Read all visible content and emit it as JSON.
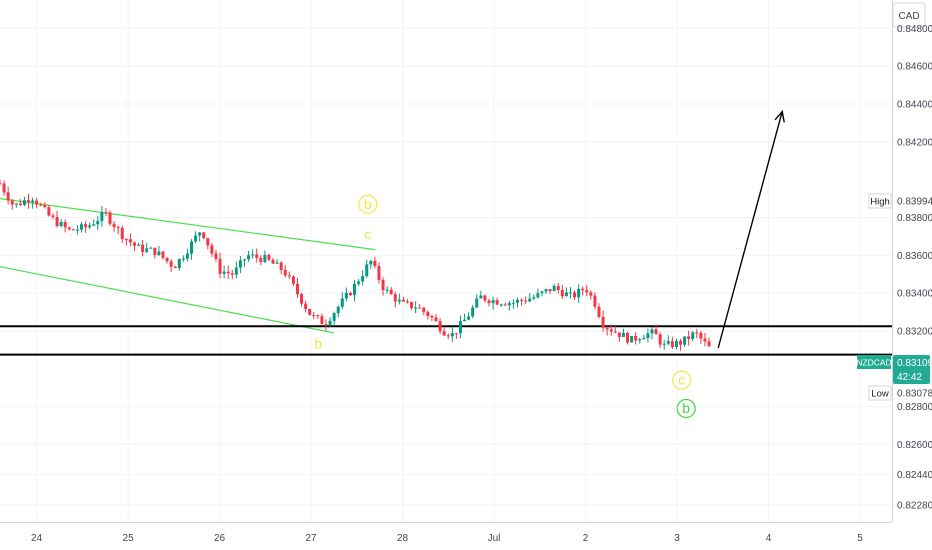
{
  "chart_data": {
    "type": "candlestick",
    "symbol": "NZDCAD",
    "currency": "CAD",
    "price_labels": {
      "last_price": "0.83109",
      "countdown": "42:42",
      "high_label": "High",
      "high_price": "0.83994",
      "low_label": "Low",
      "low_price": "0.83078"
    },
    "yaxis": {
      "ylim": [
        0.8219,
        0.8495
      ],
      "ticks": [
        "0.84800",
        "0.84600",
        "0.84400",
        "0.84200",
        "0.83800",
        "0.83600",
        "0.83400",
        "0.83200",
        "0.82800",
        "0.82600",
        "0.82440",
        "0.82280"
      ]
    },
    "xaxis": {
      "xlim": [
        -0.4,
        9.35
      ],
      "ticks": [
        {
          "label": "24",
          "x": 0
        },
        {
          "label": "25",
          "x": 1
        },
        {
          "label": "26",
          "x": 2
        },
        {
          "label": "27",
          "x": 3
        },
        {
          "label": "28",
          "x": 4
        },
        {
          "label": "Jul",
          "x": 5
        },
        {
          "label": "2",
          "x": 6
        },
        {
          "label": "3",
          "x": 7
        },
        {
          "label": "4",
          "x": 8
        },
        {
          "label": "5",
          "x": 9
        }
      ]
    },
    "price_path": [
      [
        -0.4,
        0.8398
      ],
      [
        -0.25,
        0.8386
      ],
      [
        -0.05,
        0.8391
      ],
      [
        0.15,
        0.838
      ],
      [
        0.35,
        0.8373
      ],
      [
        0.55,
        0.8375
      ],
      [
        0.75,
        0.8382
      ],
      [
        0.95,
        0.837
      ],
      [
        1.1,
        0.8364
      ],
      [
        1.3,
        0.8362
      ],
      [
        1.5,
        0.8354
      ],
      [
        1.62,
        0.8361
      ],
      [
        1.8,
        0.8374
      ],
      [
        2.0,
        0.8352
      ],
      [
        2.15,
        0.835
      ],
      [
        2.3,
        0.836
      ],
      [
        2.5,
        0.8358
      ],
      [
        2.7,
        0.8352
      ],
      [
        2.85,
        0.834
      ],
      [
        3.0,
        0.8328
      ],
      [
        3.15,
        0.8324
      ],
      [
        3.3,
        0.8333
      ],
      [
        3.45,
        0.8342
      ],
      [
        3.65,
        0.8357
      ],
      [
        3.8,
        0.8342
      ],
      [
        4.0,
        0.8334
      ],
      [
        4.15,
        0.8333
      ],
      [
        4.3,
        0.8328
      ],
      [
        4.45,
        0.832
      ],
      [
        4.55,
        0.8318
      ],
      [
        4.7,
        0.8327
      ],
      [
        4.85,
        0.8338
      ],
      [
        5.0,
        0.8336
      ],
      [
        5.2,
        0.8335
      ],
      [
        5.45,
        0.8338
      ],
      [
        5.65,
        0.8343
      ],
      [
        5.85,
        0.8338
      ],
      [
        6.0,
        0.8343
      ],
      [
        6.1,
        0.8335
      ],
      [
        6.2,
        0.8323
      ],
      [
        6.35,
        0.8319
      ],
      [
        6.5,
        0.8315
      ],
      [
        6.62,
        0.8318
      ],
      [
        6.75,
        0.8319
      ],
      [
        6.85,
        0.8312
      ],
      [
        7.05,
        0.8314
      ],
      [
        7.2,
        0.8319
      ],
      [
        7.35,
        0.8311
      ]
    ],
    "candle_count": 175,
    "colors": {
      "up": "#089981",
      "down": "#f23645",
      "channel": "#4ce04c",
      "wave_yellow": "#f5e642",
      "wave_green": "#3fd83f",
      "support_lines": "#000000",
      "grid": "#f0f3fa",
      "axis_text": "#434651",
      "last_price_bg": "#22ab94"
    },
    "channel": {
      "upper": {
        "from": [
          -0.4,
          0.839
        ],
        "to": [
          3.7,
          0.8363
        ]
      },
      "lower": {
        "from": [
          -0.4,
          0.8354
        ],
        "to": [
          3.25,
          0.8319
        ]
      }
    },
    "horizontal_levels": [
      0.83225,
      0.83075
    ],
    "projection_arrow": {
      "from": [
        7.45,
        0.8311
      ],
      "to": [
        8.15,
        0.8436
      ]
    },
    "wave_labels": [
      {
        "text": "b",
        "x": 3.62,
        "y": 0.8387,
        "color": "#f5e642",
        "circled": true
      },
      {
        "text": "c",
        "x": 3.62,
        "y": 0.8371,
        "color": "#f5e642",
        "circled": false
      },
      {
        "text": "b",
        "x": 3.08,
        "y": 0.8313,
        "color": "#f5e642",
        "circled": false
      },
      {
        "text": "c",
        "x": 7.05,
        "y": 0.8294,
        "color": "#f5e642",
        "circled": true
      },
      {
        "text": "b",
        "x": 7.1,
        "y": 0.8279,
        "color": "#3fd83f",
        "circled": true
      }
    ]
  }
}
